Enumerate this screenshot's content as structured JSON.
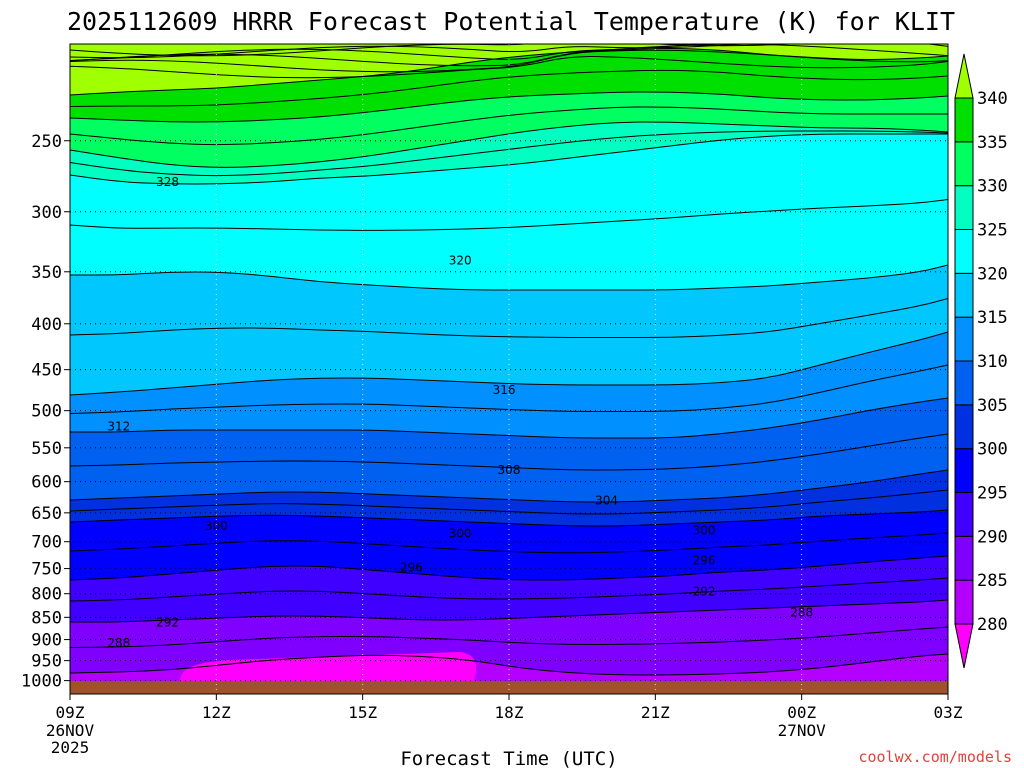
{
  "chart_data": {
    "type": "heatmap",
    "title": "2025112609 HRRR Forecast Potential Temperature (K) for KLIT",
    "xlabel": "Forecast Time (UTC)",
    "ylabel": "",
    "credit": "coolwx.com/models",
    "credit_color": "#e0423a",
    "x_ticks": [
      {
        "hour": 0,
        "label": "09Z",
        "sub": [
          "26NOV",
          "2025"
        ]
      },
      {
        "hour": 3,
        "label": "12Z",
        "sub": []
      },
      {
        "hour": 6,
        "label": "15Z",
        "sub": []
      },
      {
        "hour": 9,
        "label": "18Z",
        "sub": []
      },
      {
        "hour": 12,
        "label": "21Z",
        "sub": []
      },
      {
        "hour": 15,
        "label": "00Z",
        "sub": [
          "27NOV"
        ]
      },
      {
        "hour": 18,
        "label": "03Z",
        "sub": []
      }
    ],
    "x_range_hours": [
      0,
      18
    ],
    "y_axis_pressure_hPa": [
      250,
      300,
      350,
      400,
      450,
      500,
      550,
      600,
      650,
      700,
      750,
      800,
      850,
      900,
      950,
      1000
    ],
    "y_range_hPa": [
      1035,
      195
    ],
    "ground_color": "#a0522d",
    "colorbar": {
      "levels": [
        280,
        285,
        290,
        295,
        300,
        305,
        310,
        315,
        320,
        325,
        330,
        335,
        340
      ],
      "colors": [
        "#ff00ff",
        "#b400ff",
        "#8000ff",
        "#4000ff",
        "#0000ff",
        "#0030e0",
        "#0060f0",
        "#0090ff",
        "#00c8ff",
        "#00ffff",
        "#00ffc0",
        "#00ff60",
        "#00e000",
        "#a0ff00"
      ]
    },
    "contour_labels": [
      {
        "text": "328",
        "hour": 2.0,
        "p": 278
      },
      {
        "text": "320",
        "hour": 8.0,
        "p": 340
      },
      {
        "text": "316",
        "hour": 8.9,
        "p": 474
      },
      {
        "text": "312",
        "hour": 1.0,
        "p": 521
      },
      {
        "text": "308",
        "hour": 9.0,
        "p": 582
      },
      {
        "text": "304",
        "hour": 11.0,
        "p": 630
      },
      {
        "text": "300",
        "hour": 3.0,
        "p": 672
      },
      {
        "text": "300",
        "hour": 8.0,
        "p": 685
      },
      {
        "text": "300",
        "hour": 13.0,
        "p": 680
      },
      {
        "text": "296",
        "hour": 7.0,
        "p": 748
      },
      {
        "text": "296",
        "hour": 13.0,
        "p": 735
      },
      {
        "text": "292",
        "hour": 2.0,
        "p": 861
      },
      {
        "text": "292",
        "hour": 13.0,
        "p": 795
      },
      {
        "text": "288",
        "hour": 1.0,
        "p": 908
      },
      {
        "text": "288",
        "hour": 15.0,
        "p": 840
      }
    ]
  }
}
